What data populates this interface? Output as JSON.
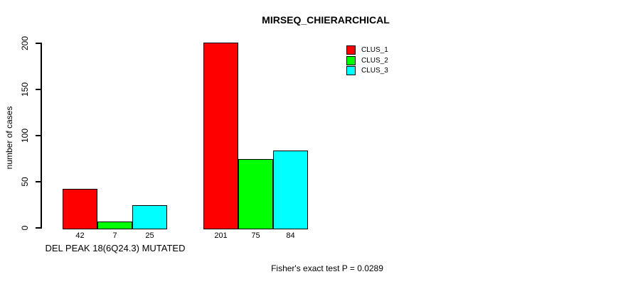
{
  "chart_data": {
    "type": "bar",
    "title": "MIRSEQ_CHIERARCHICAL",
    "ylabel": "number of cases",
    "xlabel": "DEL PEAK 18(6Q24.3) MUTATED",
    "xlabel_note": "label appears under the first bar group only",
    "ylim": [
      0,
      200
    ],
    "yticks": [
      0,
      50,
      100,
      150,
      200
    ],
    "grid": false,
    "legend_position": "top-right",
    "categories": [
      "DEL PEAK 18(6Q24.3) MUTATED",
      ""
    ],
    "series": [
      {
        "name": "CLUS_1",
        "color": "#ff0000",
        "values": [
          42,
          201
        ]
      },
      {
        "name": "CLUS_2",
        "color": "#00ff00",
        "values": [
          7,
          75
        ]
      },
      {
        "name": "CLUS_3",
        "color": "#00ffff",
        "values": [
          25,
          84
        ]
      }
    ],
    "bar_value_labels": [
      [
        42,
        7,
        25
      ],
      [
        201,
        75,
        84
      ]
    ]
  },
  "annotation": "Fisher's exact test P = 0.0289",
  "colors": {
    "background": "#ffffff",
    "text": "#000000",
    "axis": "#000000",
    "bar_border": "#000000"
  }
}
